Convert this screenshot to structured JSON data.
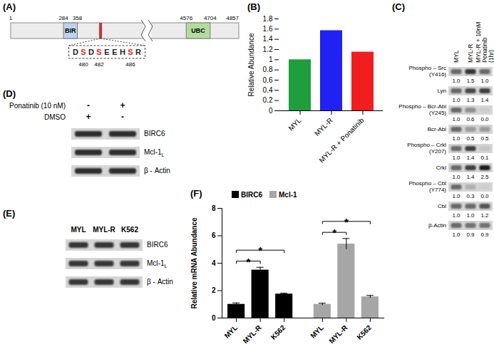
{
  "chart_data": [
    {
      "type": "bar",
      "title": "(B)",
      "categories": [
        "MYL",
        "MYL-R",
        "MYL-R + Ponatinib"
      ],
      "values": [
        1.0,
        1.57,
        1.15
      ],
      "colors": [
        "#1e9e3c",
        "#1f22f2",
        "#f01e1e"
      ],
      "ylabel": "Relative Abundance",
      "ylim": [
        0,
        1.8
      ],
      "yticks": [
        0,
        0.2,
        0.4,
        0.6,
        0.8,
        1,
        1.2,
        1.4,
        1.6,
        1.8
      ]
    },
    {
      "type": "bar",
      "title": "(F)",
      "categories": [
        "MYL",
        "MYL-R",
        "K562"
      ],
      "series": [
        {
          "name": "BIRC6",
          "color": "#000000",
          "values": [
            1.0,
            3.5,
            1.75
          ],
          "errors": [
            0.1,
            0.2,
            0.06
          ]
        },
        {
          "name": "Mcl-1",
          "color": "#a6a6a6",
          "values": [
            1.0,
            5.4,
            1.55
          ],
          "errors": [
            0.08,
            0.4,
            0.1
          ]
        }
      ],
      "significance": [
        {
          "from": "MYL",
          "to": "MYL-R",
          "label": "*"
        },
        {
          "from": "MYL",
          "to": "K562",
          "label": "*"
        }
      ],
      "ylabel": "Relative mRNA Abundance",
      "ylim": [
        0,
        8
      ],
      "yticks": [
        0,
        2,
        4,
        6,
        8
      ],
      "legend": "top-left"
    }
  ],
  "diagram": {
    "label": "(A)",
    "ends": [
      1,
      4857
    ],
    "domains": [
      {
        "name": "BIR",
        "start": 284,
        "end": 358,
        "color": "#bcd3ee"
      },
      {
        "name": "UBC",
        "start": 4576,
        "end": 4704,
        "color": "#b4dc9e"
      }
    ],
    "motif": {
      "color": "#e0201e",
      "residues": [
        {
          "aa": "D"
        },
        {
          "aa": "S",
          "site": 480
        },
        {
          "aa": "D"
        },
        {
          "aa": "S",
          "site": 482
        },
        {
          "aa": "E"
        },
        {
          "aa": "E"
        },
        {
          "aa": "H"
        },
        {
          "aa": "S",
          "site": 486
        },
        {
          "aa": "R"
        }
      ]
    }
  },
  "blots": [
    {
      "label": "(C)",
      "lanes": [
        "MYL",
        "MYL-R",
        "MYL-R + 10nM Ponatinib (1hr)"
      ],
      "rows": [
        {
          "name": "Phospho – Src (Y416)",
          "quant": [
            "1.0",
            "1.5",
            "1.0"
          ]
        },
        {
          "name": "Lyn",
          "quant": [
            "1.0",
            "1.3",
            "1.4"
          ]
        },
        {
          "name": "Phospho – Bcr-Abl (Y245)",
          "quant": [
            "1.0",
            "0.6",
            "0.0"
          ]
        },
        {
          "name": "Bcr-Abl",
          "quant": [
            "1.0",
            "0.5",
            "0.5"
          ]
        },
        {
          "name": "Phospho – Crkl (Y207)",
          "quant": [
            "1.0",
            "1.4",
            "0.1"
          ]
        },
        {
          "name": "Crkl",
          "quant": [
            "1.0",
            "1.4",
            "2.5"
          ]
        },
        {
          "name": "Phospho – Cbl (Y774)",
          "quant": [
            "1.0",
            "0.3",
            "0.0"
          ]
        },
        {
          "name": "Cbl",
          "quant": [
            "1.0",
            "1.0",
            "1.2"
          ]
        },
        {
          "name": "β-Actin",
          "quant": [
            "1.0",
            "0.9",
            "0.9"
          ]
        }
      ]
    },
    {
      "label": "(D)",
      "conditions": [
        {
          "name": "Ponatinib (10 nM)",
          "lanes": [
            "-",
            "+"
          ]
        },
        {
          "name": "DMSO",
          "lanes": [
            "+",
            "-"
          ]
        }
      ],
      "rows": [
        {
          "name": "BIRC6"
        },
        {
          "name": "Mcl-1",
          "subscript": "L"
        },
        {
          "name": "β - Actin"
        }
      ]
    },
    {
      "label": "(E)",
      "lanes": [
        "MYL",
        "MYL-R",
        "K562"
      ],
      "rows": [
        {
          "name": "BIRC6"
        },
        {
          "name": "Mcl-1",
          "subscript": "L"
        },
        {
          "name": "β - Actin"
        }
      ]
    }
  ]
}
